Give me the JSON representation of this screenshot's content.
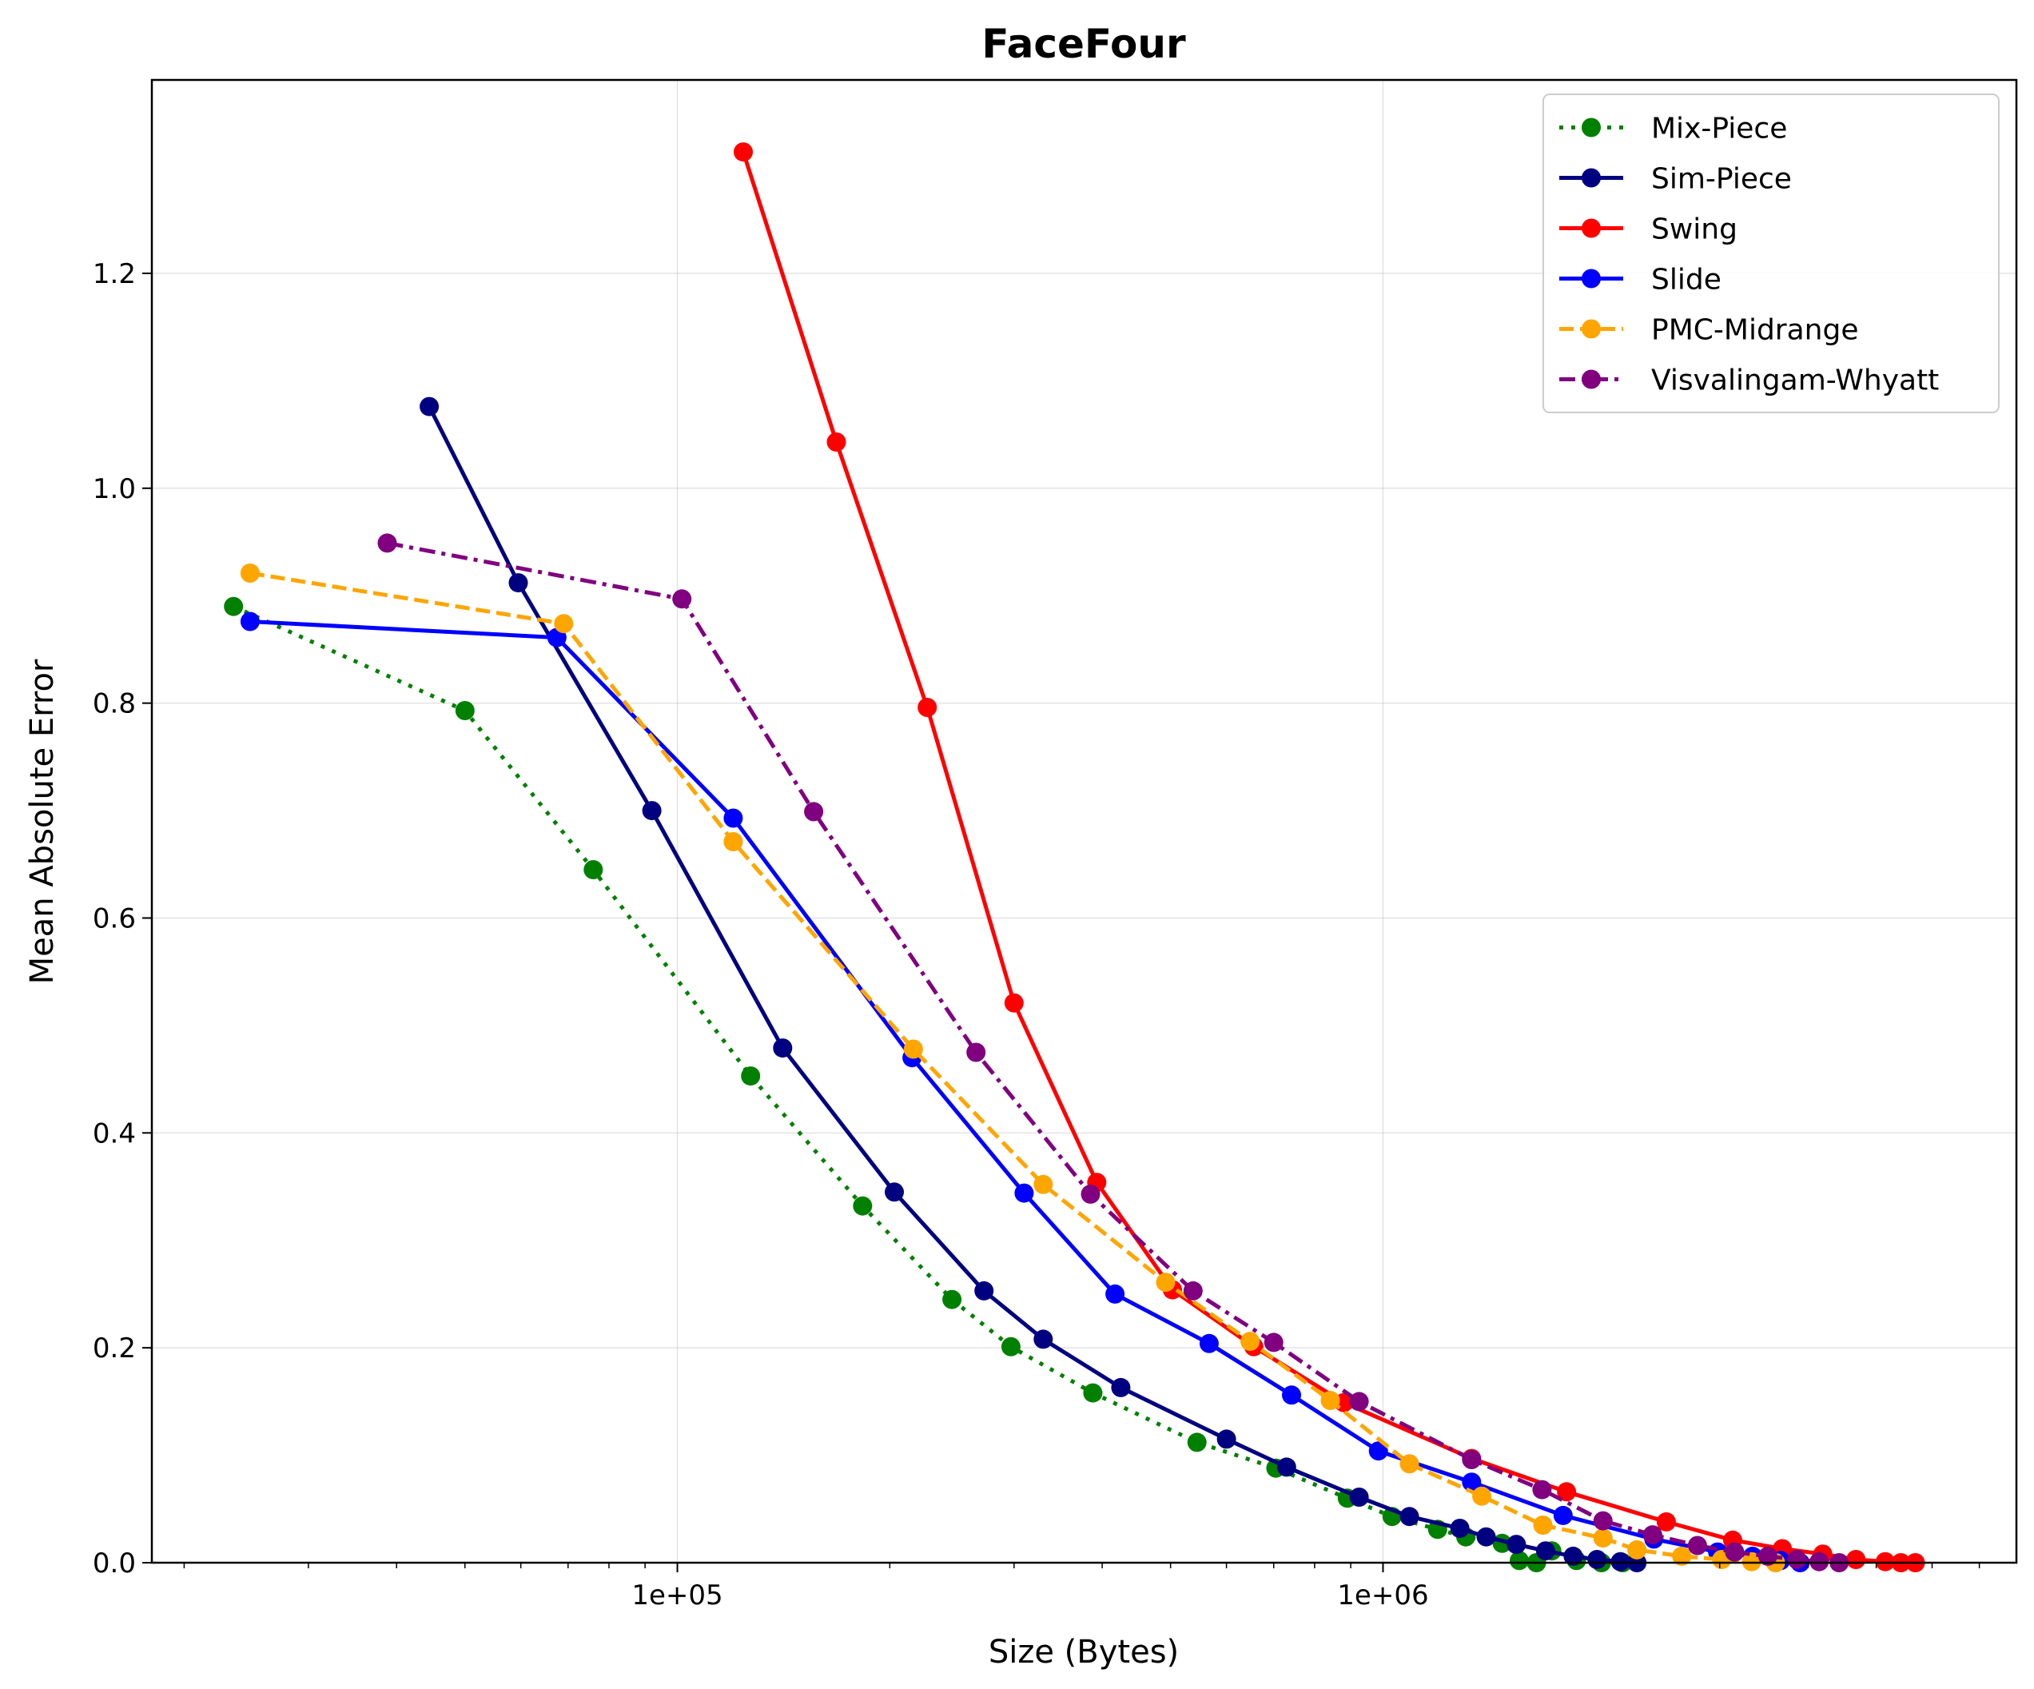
{
  "chart_data": {
    "type": "line",
    "title": "FaceFour",
    "xlabel": "Size (Bytes)",
    "ylabel": "Mean Absolute Error",
    "xscale": "log",
    "xlim": [
      18000,
      7900000
    ],
    "ylim": [
      0,
      1.38
    ],
    "grid": true,
    "legend_position": "top-right",
    "x_major_ticks": [
      {
        "value": 100000,
        "label": "1e+05"
      },
      {
        "value": 1000000,
        "label": "1e+06"
      }
    ],
    "y_ticks": [
      {
        "value": 0.0,
        "label": "0.0"
      },
      {
        "value": 0.2,
        "label": "0.2"
      },
      {
        "value": 0.4,
        "label": "0.4"
      },
      {
        "value": 0.6,
        "label": "0.6"
      },
      {
        "value": 0.8,
        "label": "0.8"
      },
      {
        "value": 1.0,
        "label": "1.0"
      },
      {
        "value": 1.2,
        "label": "1.2"
      }
    ],
    "series": [
      {
        "name": "Mix-Piece",
        "color": "#008000",
        "dash": "dotted",
        "points": [
          [
            23500,
            0.89
          ],
          [
            50000,
            0.793
          ],
          [
            76000,
            0.645
          ],
          [
            127000,
            0.453
          ],
          [
            183000,
            0.332
          ],
          [
            245000,
            0.245
          ],
          [
            297000,
            0.201
          ],
          [
            388000,
            0.158
          ],
          [
            545000,
            0.112
          ],
          [
            705000,
            0.088
          ],
          [
            890000,
            0.06
          ],
          [
            1030000,
            0.043
          ],
          [
            1195000,
            0.031
          ],
          [
            1310000,
            0.024
          ],
          [
            1475000,
            0.018
          ],
          [
            1560000,
            0.002
          ],
          [
            1650000,
            0.0
          ],
          [
            1735000,
            0.011
          ],
          [
            1880000,
            0.002
          ],
          [
            2040000,
            0.0
          ],
          [
            2185000,
            0.0
          ]
        ]
      },
      {
        "name": "Sim-Piece",
        "color": "#000080",
        "dash": "solid",
        "points": [
          [
            44500,
            1.076
          ],
          [
            59500,
            0.912
          ],
          [
            92000,
            0.7
          ],
          [
            141000,
            0.479
          ],
          [
            203000,
            0.345
          ],
          [
            272000,
            0.253
          ],
          [
            330000,
            0.208
          ],
          [
            425000,
            0.163
          ],
          [
            600000,
            0.115
          ],
          [
            730000,
            0.089
          ],
          [
            925000,
            0.061
          ],
          [
            1090000,
            0.043
          ],
          [
            1285000,
            0.032
          ],
          [
            1400000,
            0.024
          ],
          [
            1545000,
            0.017
          ],
          [
            1700000,
            0.011
          ],
          [
            1860000,
            0.006
          ],
          [
            2010000,
            0.003
          ],
          [
            2170000,
            0.001
          ],
          [
            2290000,
            0.0
          ]
        ]
      },
      {
        "name": "Swing",
        "color": "#ff0000",
        "dash": "solid",
        "points": [
          [
            124000,
            1.313
          ],
          [
            168000,
            1.043
          ],
          [
            226000,
            0.796
          ],
          [
            300000,
            0.521
          ],
          [
            393000,
            0.354
          ],
          [
            503000,
            0.254
          ],
          [
            656000,
            0.201
          ],
          [
            880000,
            0.149
          ],
          [
            1335000,
            0.097
          ],
          [
            1820000,
            0.066
          ],
          [
            2520000,
            0.038
          ],
          [
            3130000,
            0.021
          ],
          [
            3680000,
            0.013
          ],
          [
            4200000,
            0.008
          ],
          [
            4680000,
            0.003
          ],
          [
            5150000,
            0.001
          ],
          [
            5420000,
            0.0
          ],
          [
            5680000,
            0.0
          ]
        ]
      },
      {
        "name": "Slide",
        "color": "#0000ff",
        "dash": "solid",
        "points": [
          [
            24800,
            0.876
          ],
          [
            67500,
            0.861
          ],
          [
            120000,
            0.693
          ],
          [
            215000,
            0.47
          ],
          [
            310000,
            0.344
          ],
          [
            417000,
            0.25
          ],
          [
            567000,
            0.204
          ],
          [
            742000,
            0.156
          ],
          [
            985000,
            0.104
          ],
          [
            1335000,
            0.075
          ],
          [
            1800000,
            0.044
          ],
          [
            2420000,
            0.022
          ],
          [
            2980000,
            0.01
          ],
          [
            3340000,
            0.006
          ],
          [
            3660000,
            0.002
          ],
          [
            3900000,
            0.0
          ]
        ]
      },
      {
        "name": "PMC-Midrange",
        "color": "#ffa500",
        "dash": "dashed",
        "points": [
          [
            24800,
            0.921
          ],
          [
            69000,
            0.874
          ],
          [
            120000,
            0.671
          ],
          [
            216000,
            0.478
          ],
          [
            330000,
            0.352
          ],
          [
            492000,
            0.261
          ],
          [
            648000,
            0.206
          ],
          [
            842000,
            0.151
          ],
          [
            1090000,
            0.092
          ],
          [
            1380000,
            0.062
          ],
          [
            1685000,
            0.035
          ],
          [
            2050000,
            0.023
          ],
          [
            2290000,
            0.012
          ],
          [
            2650000,
            0.006
          ],
          [
            3020000,
            0.003
          ],
          [
            3330000,
            0.001
          ],
          [
            3600000,
            0.0
          ]
        ]
      },
      {
        "name": "Visvalingam-Whyatt",
        "color": "#800080",
        "dash": "dashdot",
        "points": [
          [
            38800,
            0.949
          ],
          [
            101500,
            0.897
          ],
          [
            156000,
            0.699
          ],
          [
            265000,
            0.475
          ],
          [
            385000,
            0.343
          ],
          [
            538000,
            0.253
          ],
          [
            700000,
            0.205
          ],
          [
            925000,
            0.15
          ],
          [
            1335000,
            0.096
          ],
          [
            1680000,
            0.068
          ],
          [
            2050000,
            0.039
          ],
          [
            2410000,
            0.026
          ],
          [
            2790000,
            0.016
          ],
          [
            3150000,
            0.01
          ],
          [
            3510000,
            0.006
          ],
          [
            3860000,
            0.003
          ],
          [
            4150000,
            0.001
          ],
          [
            4430000,
            0.0
          ]
        ]
      }
    ]
  }
}
